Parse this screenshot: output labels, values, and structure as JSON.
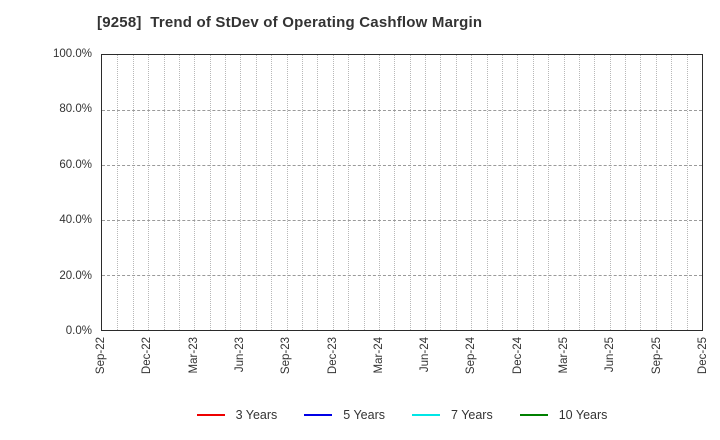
{
  "title": "[9258]  Trend of StDev of Operating Cashflow Margin",
  "y_axis": {
    "tick_labels": [
      "100.0%",
      "80.0%",
      "60.0%",
      "40.0%",
      "20.0%",
      "0.0%"
    ]
  },
  "x_axis": {
    "tick_labels": [
      "Sep-22",
      "Dec-22",
      "Mar-23",
      "Jun-23",
      "Sep-23",
      "Dec-23",
      "Mar-24",
      "Jun-24",
      "Sep-24",
      "Dec-24",
      "Mar-25",
      "Jun-25",
      "Sep-25",
      "Dec-25"
    ],
    "minor_gridlines_per_interval": 3
  },
  "legend": {
    "items": [
      {
        "label": "3 Years",
        "color": "#ee0000"
      },
      {
        "label": "5 Years",
        "color": "#0000e6"
      },
      {
        "label": "7 Years",
        "color": "#00e6e6"
      },
      {
        "label": "10 Years",
        "color": "#008000"
      }
    ]
  },
  "chart_data": {
    "type": "line",
    "title": "[9258]  Trend of StDev of Operating Cashflow Margin",
    "x_categories": [
      "Sep-22",
      "Dec-22",
      "Mar-23",
      "Jun-23",
      "Sep-23",
      "Dec-23",
      "Mar-24",
      "Jun-24",
      "Sep-24",
      "Dec-24",
      "Mar-25",
      "Jun-25",
      "Sep-25",
      "Dec-25"
    ],
    "series": [
      {
        "name": "3 Years",
        "color": "#ee0000",
        "values": []
      },
      {
        "name": "5 Years",
        "color": "#0000e6",
        "values": []
      },
      {
        "name": "7 Years",
        "color": "#00e6e6",
        "values": []
      },
      {
        "name": "10 Years",
        "color": "#008000",
        "values": []
      }
    ],
    "ylim": [
      0,
      100
    ],
    "y_ticks_percent": [
      0,
      20,
      40,
      60,
      80,
      100
    ],
    "y_tick_format": "percent_one_decimal",
    "grid": true,
    "legend_position": "bottom-center",
    "plot_is_empty": true
  }
}
